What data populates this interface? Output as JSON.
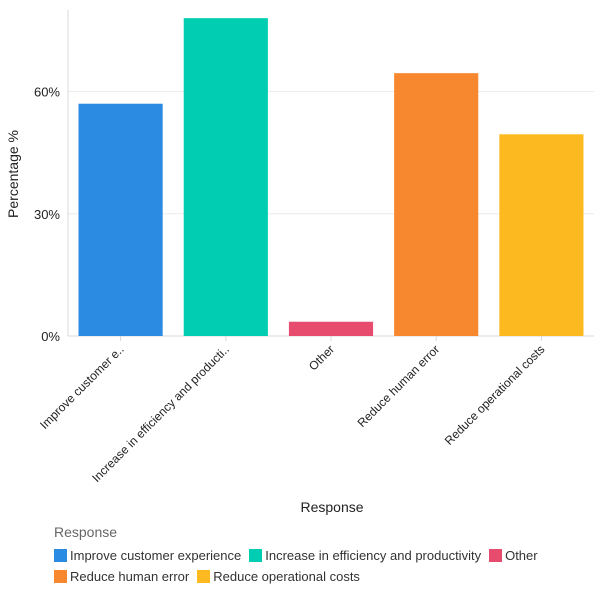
{
  "chart_data": {
    "type": "bar",
    "xlabel": "Response",
    "ylabel": "Percentage %",
    "ylim": [
      0,
      80
    ],
    "yticks": [
      0,
      30,
      60
    ],
    "ytick_labels": [
      "0%",
      "30%",
      "60%"
    ],
    "categories": [
      "Improve customer experience",
      "Increase in efficiency and productivity",
      "Other",
      "Reduce human error",
      "Reduce operational costs"
    ],
    "tick_labels": [
      "Improve customer e..",
      "Increase in efficiency and producti..",
      "Other",
      "Reduce human error",
      "Reduce operational costs"
    ],
    "values": [
      57,
      78,
      3.5,
      64.5,
      49.5
    ],
    "colors": [
      "#2b8ae2",
      "#00cdb1",
      "#e74c6f",
      "#f7882f",
      "#fcba20"
    ],
    "grid": true,
    "legend": {
      "title": "Response",
      "position": "bottom",
      "items": [
        "Improve customer experience",
        "Increase in efficiency and productivity",
        "Other",
        "Reduce human error",
        "Reduce operational costs"
      ]
    }
  }
}
